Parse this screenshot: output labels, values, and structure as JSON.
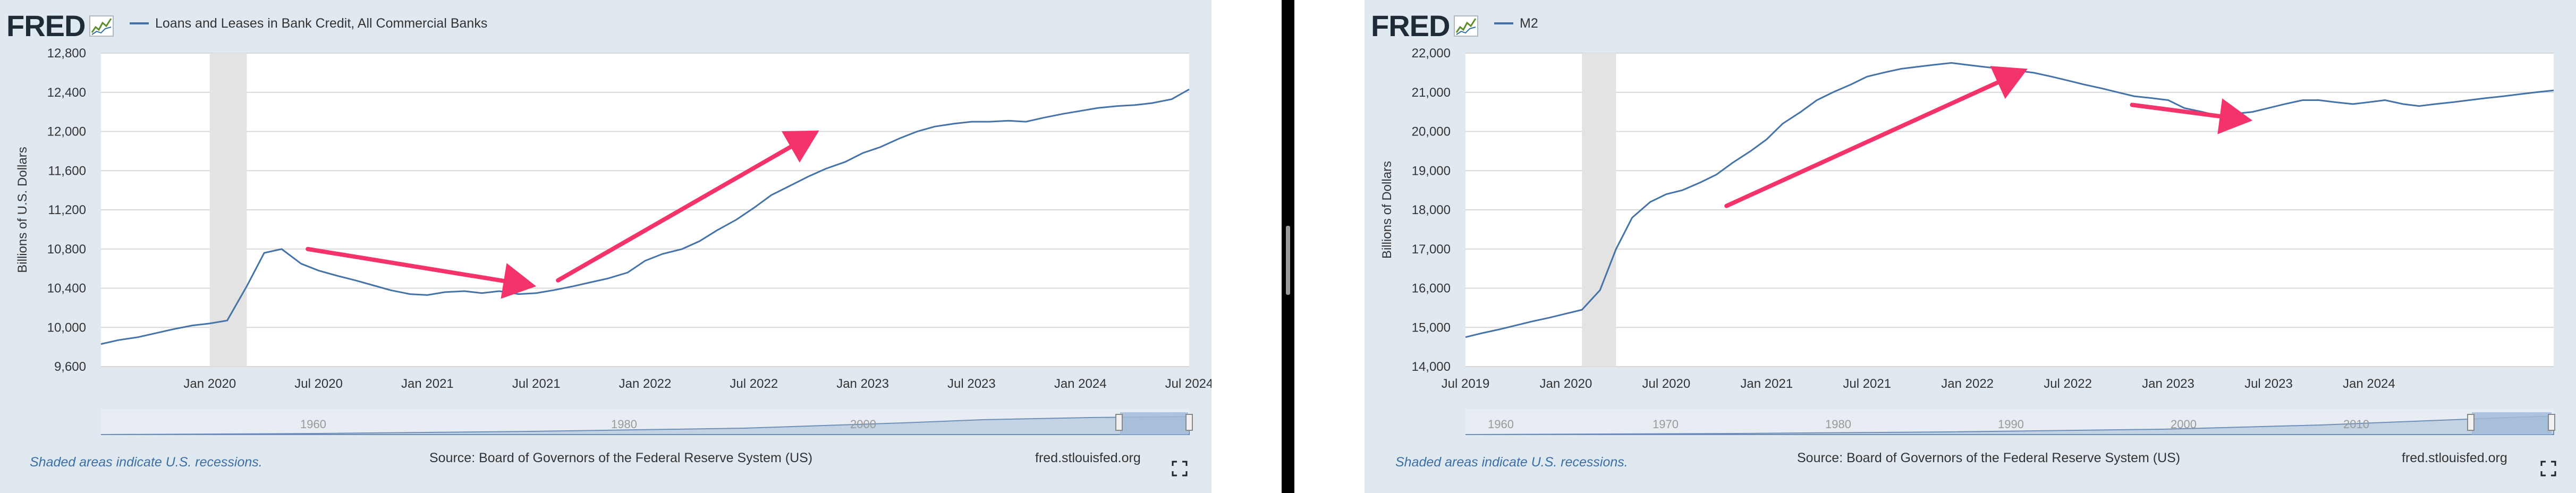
{
  "colors": {
    "panel_bg": "#e1e9f0",
    "series": "#4572a7",
    "recession": "#e3e3e3",
    "arrow": "#f5336b",
    "nav_fill": "#a3bbd8"
  },
  "shared": {
    "logo": "FRED",
    "logo_icon": "fred-chart-icon",
    "recession_note": "Shaded areas indicate U.S. recessions.",
    "source": "Source: Board of Governors of the Federal Reserve System (US)",
    "site": "fred.stlouisfed.org",
    "fullscreen_icon": "expand-icon"
  },
  "charts": {
    "left": {
      "legend": "Loans and Leases in Bank Credit, All Commercial Banks",
      "navigator_labels": [
        "1960",
        "1980",
        "2000"
      ]
    },
    "right": {
      "legend": "M2",
      "navigator_labels": [
        "1960",
        "1970",
        "1980",
        "1990",
        "2000",
        "2010"
      ]
    }
  },
  "chart_data": [
    {
      "type": "line",
      "title": "Loans and Leases in Bank Credit, All Commercial Banks",
      "ylabel": "Billions of U.S. Dollars",
      "ylim": [
        9600,
        12800
      ],
      "yticks": [
        9600,
        10000,
        10400,
        10800,
        11200,
        11600,
        12000,
        12400,
        12800
      ],
      "ytick_labels": [
        "9,600",
        "10,000",
        "10,400",
        "10,800",
        "11,200",
        "11,600",
        "12,000",
        "12,400",
        "12,800"
      ],
      "xlim": [
        2019.5,
        2024.5
      ],
      "xticks": [
        2020.0,
        2020.5,
        2021.0,
        2021.5,
        2022.0,
        2022.5,
        2023.0,
        2023.5,
        2024.0,
        2024.5
      ],
      "xtick_labels": [
        "Jan 2020",
        "Jul 2020",
        "Jan 2021",
        "Jul 2021",
        "Jan 2022",
        "Jul 2022",
        "Jan 2023",
        "Jul 2023",
        "Jan 2024",
        "Jul 2024"
      ],
      "recession": [
        2020.0,
        2020.17
      ],
      "series": [
        {
          "name": "Loans and Leases in Bank Credit, All Commercial Banks",
          "x": [
            2019.5,
            2019.58,
            2019.67,
            2019.75,
            2019.83,
            2019.92,
            2020.0,
            2020.08,
            2020.17,
            2020.25,
            2020.33,
            2020.42,
            2020.5,
            2020.58,
            2020.67,
            2020.75,
            2020.83,
            2020.92,
            2021.0,
            2021.08,
            2021.17,
            2021.25,
            2021.33,
            2021.42,
            2021.5,
            2021.58,
            2021.67,
            2021.75,
            2021.83,
            2021.92,
            2022.0,
            2022.08,
            2022.17,
            2022.25,
            2022.33,
            2022.42,
            2022.5,
            2022.58,
            2022.67,
            2022.75,
            2022.83,
            2022.92,
            2023.0,
            2023.08,
            2023.17,
            2023.25,
            2023.33,
            2023.42,
            2023.5,
            2023.58,
            2023.67,
            2023.75,
            2023.83,
            2023.92,
            2024.0,
            2024.08,
            2024.17,
            2024.25,
            2024.33,
            2024.42,
            2024.5
          ],
          "y": [
            9830,
            9870,
            9900,
            9940,
            9980,
            10020,
            10040,
            10070,
            10420,
            10760,
            10800,
            10650,
            10580,
            10530,
            10480,
            10430,
            10380,
            10340,
            10330,
            10360,
            10370,
            10350,
            10370,
            10340,
            10350,
            10380,
            10420,
            10460,
            10500,
            10560,
            10680,
            10750,
            10800,
            10880,
            10990,
            11100,
            11220,
            11350,
            11450,
            11540,
            11620,
            11690,
            11780,
            11840,
            11930,
            12000,
            12050,
            12080,
            12100,
            12100,
            12110,
            12100,
            12140,
            12180,
            12210,
            12240,
            12260,
            12270,
            12290,
            12330,
            12430
          ]
        }
      ],
      "annotations": [
        {
          "type": "arrow",
          "from": [
            2020.45,
            10800
          ],
          "to": [
            2021.5,
            10420
          ]
        },
        {
          "type": "arrow",
          "from": [
            2021.6,
            10480
          ],
          "to": [
            2022.8,
            12010
          ]
        }
      ]
    },
    {
      "type": "line",
      "title": "M2",
      "ylabel": "Billions of Dollars",
      "ylim": [
        14000,
        22000
      ],
      "yticks": [
        14000,
        15000,
        16000,
        17000,
        18000,
        19000,
        20000,
        21000,
        22000
      ],
      "ytick_labels": [
        "14,000",
        "15,000",
        "16,000",
        "17,000",
        "18,000",
        "19,000",
        "20,000",
        "21,000",
        "22,000"
      ],
      "xlim": [
        2019.5,
        2024.92
      ],
      "xticks": [
        2019.5,
        2020.0,
        2020.5,
        2021.0,
        2021.5,
        2022.0,
        2022.5,
        2023.0,
        2023.5,
        2024.0
      ],
      "xtick_labels": [
        "Jul 2019",
        "Jan 2020",
        "Jul 2020",
        "Jan 2021",
        "Jul 2021",
        "Jan 2022",
        "Jul 2022",
        "Jan 2023",
        "Jul 2023",
        "Jan 2024"
      ],
      "recession": [
        2020.08,
        2020.25
      ],
      "series": [
        {
          "name": "M2",
          "x": [
            2019.5,
            2019.58,
            2019.67,
            2019.75,
            2019.83,
            2019.92,
            2020.0,
            2020.08,
            2020.17,
            2020.25,
            2020.33,
            2020.42,
            2020.5,
            2020.58,
            2020.67,
            2020.75,
            2020.83,
            2020.92,
            2021.0,
            2021.08,
            2021.17,
            2021.25,
            2021.33,
            2021.42,
            2021.5,
            2021.58,
            2021.67,
            2021.75,
            2021.83,
            2021.92,
            2022.0,
            2022.08,
            2022.17,
            2022.25,
            2022.33,
            2022.42,
            2022.5,
            2022.58,
            2022.67,
            2022.75,
            2022.83,
            2022.92,
            2023.0,
            2023.08,
            2023.17,
            2023.25,
            2023.33,
            2023.42,
            2023.5,
            2023.58,
            2023.67,
            2023.75,
            2023.83,
            2023.92,
            2024.0,
            2024.08,
            2024.17,
            2024.25,
            2024.33,
            2024.42,
            2024.5,
            2024.58,
            2024.67,
            2024.75,
            2024.83,
            2024.92
          ],
          "y": [
            14750,
            14850,
            14950,
            15050,
            15150,
            15250,
            15350,
            15450,
            15950,
            17000,
            17800,
            18200,
            18400,
            18500,
            18700,
            18900,
            19200,
            19500,
            19800,
            20200,
            20500,
            20800,
            21000,
            21200,
            21400,
            21500,
            21600,
            21650,
            21700,
            21750,
            21700,
            21650,
            21600,
            21550,
            21500,
            21400,
            21300,
            21200,
            21100,
            21000,
            20900,
            20850,
            20800,
            20600,
            20500,
            20400,
            20450,
            20500,
            20600,
            20700,
            20800,
            20800,
            20750,
            20700,
            20750,
            20800,
            20700,
            20650,
            20700,
            20750,
            20800,
            20850,
            20900,
            20950,
            21000,
            21050
          ]
        }
      ],
      "annotations": [
        {
          "type": "arrow",
          "from": [
            2020.8,
            18100
          ],
          "to": [
            2022.3,
            21600
          ]
        },
        {
          "type": "arrow",
          "from": [
            2022.82,
            20680
          ],
          "to": [
            2023.42,
            20280
          ]
        }
      ]
    }
  ]
}
